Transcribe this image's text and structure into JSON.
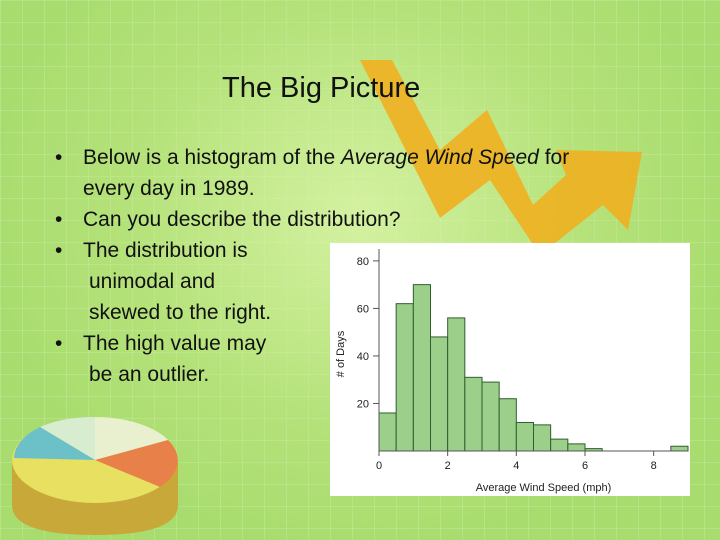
{
  "slide": {
    "title": "The Big Picture",
    "bullets": {
      "b1_pre": "Below is a histogram of the ",
      "b1_em": "Average Wind Speed",
      "b1_post": " for",
      "b1_cont": "every day in 1989.",
      "b2": "Can you describe the distribution?",
      "b3": "The distribution is",
      "b3_c1": "unimodal and",
      "b3_c2": "skewed to the right.",
      "b4": "The high value may",
      "b4_c1": "be an outlier."
    },
    "bullet_symbol": "•"
  },
  "colors": {
    "background": "#a8dc6e",
    "bar_fill": "#9ccf8a",
    "bar_stroke": "#2f5e2f",
    "arrow": "#f0b020"
  },
  "chart_data": {
    "type": "bar",
    "xlabel": "Average Wind Speed (mph)",
    "ylabel": "# of Days",
    "xlim": [
      0,
      9
    ],
    "ylim": [
      0,
      85
    ],
    "x_ticks": [
      "0",
      "2",
      "4",
      "6",
      "8"
    ],
    "y_ticks": [
      "20",
      "40",
      "60",
      "80"
    ],
    "bin_width": 0.5,
    "bins": [
      {
        "start": 0.0,
        "value": 16
      },
      {
        "start": 0.5,
        "value": 62
      },
      {
        "start": 1.0,
        "value": 70
      },
      {
        "start": 1.5,
        "value": 48
      },
      {
        "start": 2.0,
        "value": 56
      },
      {
        "start": 2.5,
        "value": 31
      },
      {
        "start": 3.0,
        "value": 29
      },
      {
        "start": 3.5,
        "value": 22
      },
      {
        "start": 4.0,
        "value": 12
      },
      {
        "start": 4.5,
        "value": 11
      },
      {
        "start": 5.0,
        "value": 5
      },
      {
        "start": 5.5,
        "value": 3
      },
      {
        "start": 6.0,
        "value": 1
      },
      {
        "start": 8.5,
        "value": 2
      }
    ]
  }
}
